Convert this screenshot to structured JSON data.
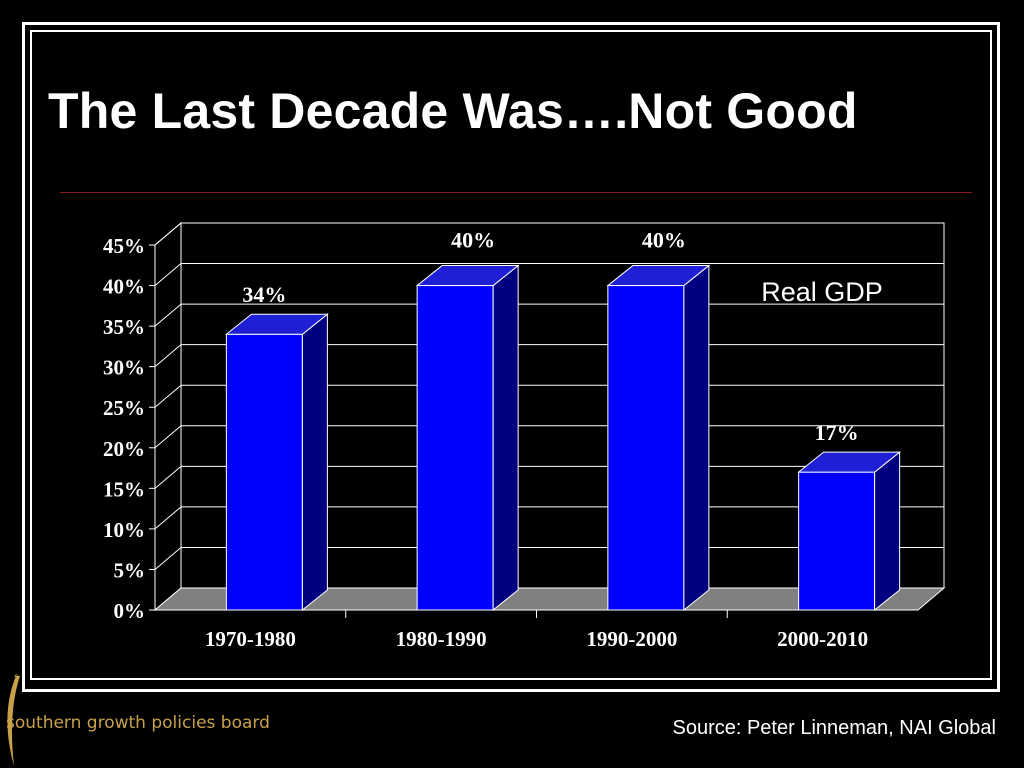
{
  "slide": {
    "title": "The Last Decade Was….Not Good",
    "source": "Source: Peter Linneman, NAI Global",
    "logo_text": "southern growth policies board"
  },
  "colors": {
    "background": "#000000",
    "bar_front": "#0000ff",
    "bar_side": "#000080",
    "bar_top": "#1f1fd6",
    "floor": "#808080",
    "rule": "#8b1a1a",
    "logo": "#c8a04a"
  },
  "chart_data": {
    "type": "bar",
    "style": "3d",
    "categories": [
      "1970-1980",
      "1980-1990",
      "1990-2000",
      "2000-2010"
    ],
    "values": [
      34,
      40,
      40,
      17
    ],
    "data_labels": [
      "34%",
      "40%",
      "40%",
      "17%"
    ],
    "annotation": "Real GDP",
    "yticks": [
      "0%",
      "5%",
      "10%",
      "15%",
      "20%",
      "25%",
      "30%",
      "35%",
      "40%",
      "45%"
    ],
    "ylim": [
      0,
      45
    ],
    "grid": true,
    "legend": "none"
  }
}
